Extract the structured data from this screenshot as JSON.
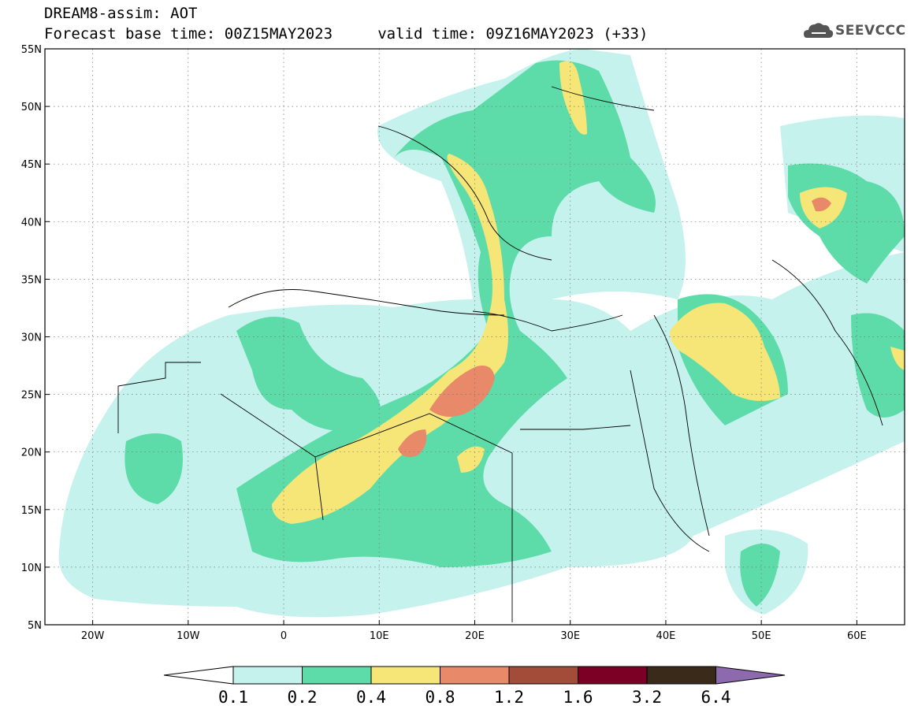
{
  "header": {
    "line1": "DREAM8-assim: AOT",
    "line2": "Forecast base time: 00Z15MAY2023     valid time: 09Z16MAY2023 (+33)"
  },
  "logo": {
    "text": "SEEVCCC",
    "icon": "cloud-icon",
    "color": "#555555"
  },
  "map": {
    "projection": "lat-lon",
    "lon_range": [
      -25,
      65
    ],
    "lat_range": [
      5,
      55
    ],
    "lat_labels": [
      "5N",
      "10N",
      "15N",
      "20N",
      "25N",
      "30N",
      "35N",
      "40N",
      "45N",
      "50N",
      "55N"
    ],
    "lon_labels": [
      "20W",
      "10W",
      "0",
      "10E",
      "20E",
      "30E",
      "40E",
      "50E",
      "60E"
    ],
    "grid": "dotted"
  },
  "colorbar": {
    "ticks": [
      "0.1",
      "0.2",
      "0.4",
      "0.8",
      "1.2",
      "1.6",
      "3.2",
      "6.4"
    ],
    "colors": [
      "#ffffff",
      "#c6f2ee",
      "#5ddcaa",
      "#f5e677",
      "#e8896a",
      "#a44c3a",
      "#7c0025",
      "#3a2a1a",
      "#8d6aad"
    ],
    "extend": "both"
  }
}
